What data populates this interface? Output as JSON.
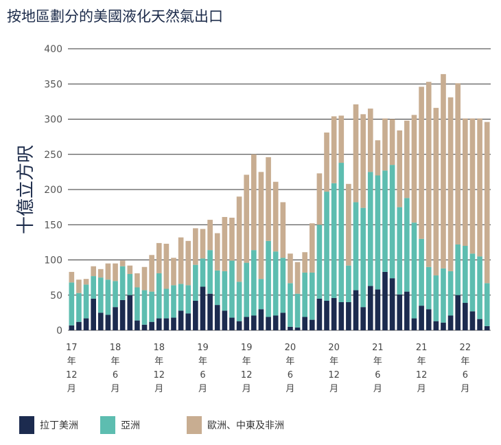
{
  "title": "按地區劃分的美國液化天然氣出口",
  "chart_data": {
    "type": "bar",
    "stacked": true,
    "title": "按地區劃分的美國液化天然氣出口",
    "ylabel": "十億立方呎",
    "xlabel": "",
    "ylim": [
      0,
      400
    ],
    "yticks": [
      0,
      50,
      100,
      150,
      200,
      250,
      300,
      350,
      400
    ],
    "grid": true,
    "legend_position": "bottom",
    "x_tick_labels": [
      {
        "index": 0,
        "lines": [
          "17",
          "年",
          "12",
          "月"
        ]
      },
      {
        "index": 6,
        "lines": [
          "18",
          "年",
          "6",
          "月"
        ]
      },
      {
        "index": 12,
        "lines": [
          "18",
          "年",
          "12",
          "月"
        ]
      },
      {
        "index": 18,
        "lines": [
          "19",
          "年",
          "6",
          "月"
        ]
      },
      {
        "index": 24,
        "lines": [
          "19",
          "年",
          "12",
          "月"
        ]
      },
      {
        "index": 30,
        "lines": [
          "20",
          "年",
          "6",
          "月"
        ]
      },
      {
        "index": 36,
        "lines": [
          "20",
          "年",
          "12",
          "月"
        ]
      },
      {
        "index": 42,
        "lines": [
          "21",
          "年",
          "6",
          "月"
        ]
      },
      {
        "index": 48,
        "lines": [
          "21",
          "年",
          "12",
          "月"
        ]
      },
      {
        "index": 54,
        "lines": [
          "22",
          "年",
          "6",
          "月"
        ]
      }
    ],
    "series": [
      {
        "name": "拉丁美洲",
        "color": "#1c2b4f",
        "values": [
          7,
          12,
          17,
          45,
          25,
          22,
          33,
          43,
          50,
          14,
          8,
          12,
          17,
          17,
          18,
          28,
          24,
          42,
          62,
          52,
          36,
          28,
          18,
          13,
          19,
          21,
          30,
          19,
          21,
          25,
          5,
          4,
          19,
          15,
          45,
          42,
          46,
          40,
          40,
          57,
          33,
          63,
          58,
          83,
          74,
          51,
          55,
          17,
          35,
          30,
          13,
          11,
          21,
          50,
          39,
          27,
          16,
          6
        ]
      },
      {
        "name": "亞洲",
        "color": "#5dbdb0",
        "values": [
          61,
          41,
          48,
          32,
          50,
          50,
          37,
          48,
          30,
          47,
          49,
          43,
          64,
          42,
          46,
          38,
          40,
          51,
          40,
          62,
          49,
          56,
          81,
          56,
          77,
          93,
          43,
          108,
          91,
          78,
          62,
          48,
          63,
          67,
          105,
          155,
          163,
          198,
          52,
          125,
          141,
          162,
          162,
          144,
          161,
          124,
          133,
          136,
          95,
          60,
          65,
          77,
          63,
          72,
          81,
          82,
          89,
          61
        ]
      },
      {
        "name": "歐洲、中東及非洲",
        "color": "#c8ad91",
        "values": [
          15,
          19,
          8,
          14,
          12,
          23,
          25,
          8,
          12,
          20,
          33,
          52,
          43,
          64,
          39,
          66,
          63,
          52,
          42,
          43,
          53,
          77,
          61,
          121,
          125,
          136,
          152,
          119,
          99,
          79,
          42,
          45,
          29,
          70,
          73,
          84,
          95,
          67,
          116,
          139,
          133,
          90,
          50,
          74,
          65,
          109,
          110,
          153,
          216,
          263,
          238,
          276,
          247,
          229,
          181,
          192,
          196,
          229
        ]
      }
    ]
  },
  "legend": {
    "items": [
      {
        "label": "拉丁美洲",
        "color": "#1c2b4f"
      },
      {
        "label": "亞洲",
        "color": "#5dbdb0"
      },
      {
        "label": "歐洲、中東及非洲",
        "color": "#c8ad91"
      }
    ]
  }
}
